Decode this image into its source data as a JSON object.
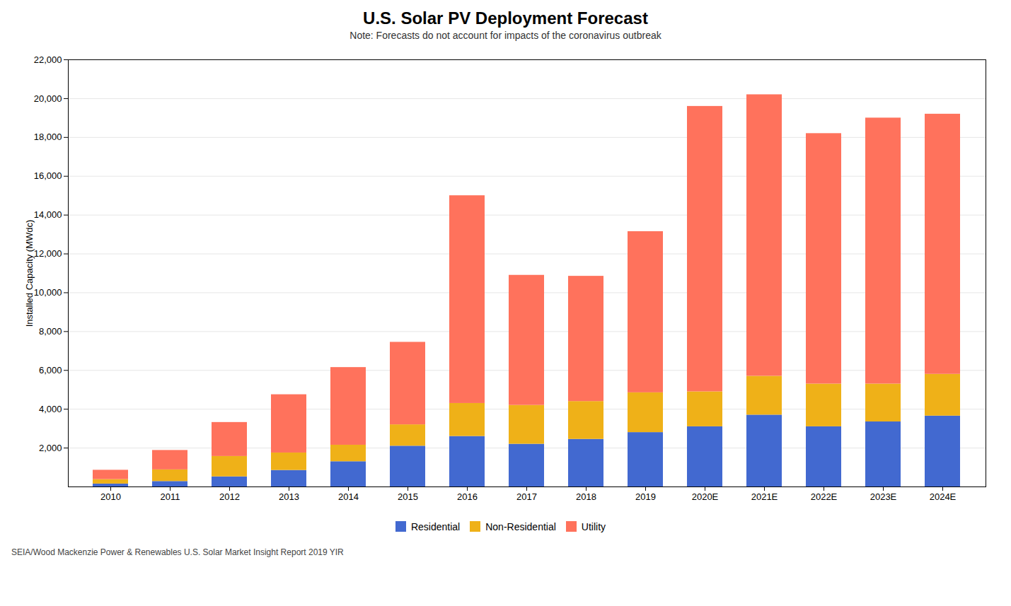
{
  "chart_data": {
    "type": "bar",
    "stacked": true,
    "title": "U.S. Solar PV Deployment Forecast",
    "subtitle": "Note: Forecasts do not account for impacts of the coronavirus outbreak",
    "ylabel": "Installed Capacity (MWdc)",
    "footnote": "SEIA/Wood Mackenzie Power & Renewables U.S. Solar Market Insight Report 2019 YIR",
    "categories": [
      "2010",
      "2011",
      "2012",
      "2013",
      "2014",
      "2015",
      "2016",
      "2017",
      "2018",
      "2019",
      "2020E",
      "2021E",
      "2022E",
      "2023E",
      "2024E"
    ],
    "series": [
      {
        "name": "Residential",
        "values": [
          150,
          280,
          520,
          850,
          1300,
          2100,
          2600,
          2200,
          2450,
          2800,
          3100,
          3700,
          3100,
          3350,
          3650
        ]
      },
      {
        "name": "Non-Residential",
        "values": [
          230,
          600,
          1050,
          900,
          850,
          1100,
          1700,
          2000,
          1950,
          2050,
          1800,
          2000,
          2200,
          1950,
          2150
        ]
      },
      {
        "name": "Utility",
        "values": [
          480,
          1000,
          1750,
          3000,
          4000,
          4250,
          10700,
          6700,
          6450,
          8300,
          14700,
          14500,
          12900,
          13700,
          13400
        ]
      }
    ],
    "ylim": [
      0,
      22000
    ],
    "yticks": [
      {
        "value": 2000,
        "label": "2,000"
      },
      {
        "value": 4000,
        "label": "4,000"
      },
      {
        "value": 6000,
        "label": "6,000"
      },
      {
        "value": 8000,
        "label": "8,000"
      },
      {
        "value": 10000,
        "label": "10,000"
      },
      {
        "value": 12000,
        "label": "12,000"
      },
      {
        "value": 14000,
        "label": "14,000"
      },
      {
        "value": 16000,
        "label": "16,000"
      },
      {
        "value": 18000,
        "label": "18,000"
      },
      {
        "value": 20000,
        "label": "20,000"
      },
      {
        "value": 22000,
        "label": "22,000"
      }
    ],
    "grid": true,
    "legend": "bottom"
  }
}
